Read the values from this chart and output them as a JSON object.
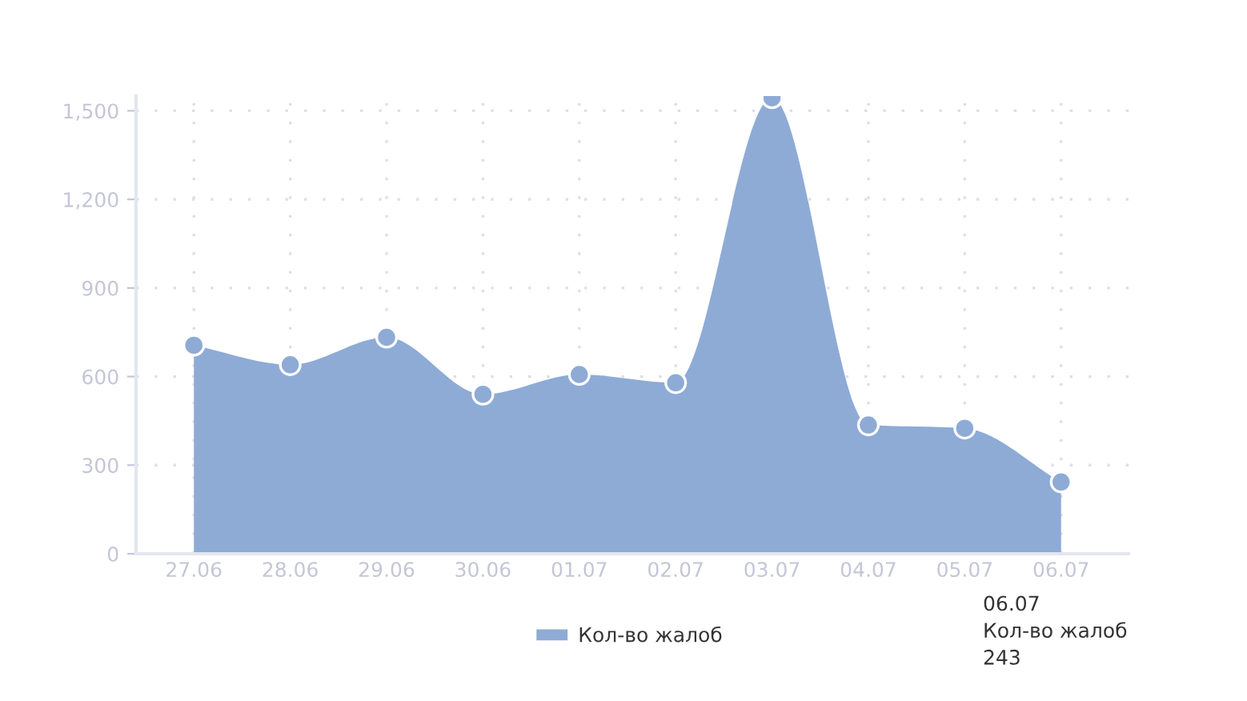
{
  "chart_data": {
    "type": "area",
    "categories": [
      "27.06",
      "28.06",
      "29.06",
      "30.06",
      "01.07",
      "02.07",
      "03.07",
      "04.07",
      "05.07",
      "06.07"
    ],
    "series": [
      {
        "name": "Кол-во жалоб",
        "color": "#8eabd6",
        "values": [
          706,
          640,
          733,
          540,
          607,
          579,
          1544,
          436,
          425,
          243
        ]
      }
    ],
    "ylim": [
      0,
      1550
    ],
    "yticks": [
      0,
      300,
      600,
      900,
      {
        "value": 1200,
        "label": "1,200"
      },
      {
        "value": 1500,
        "label": "1,500"
      }
    ],
    "grid": true,
    "legend": "bottom",
    "marker": "circle",
    "annotations": [
      "06.07\nКол-во жалоб\n243"
    ]
  }
}
